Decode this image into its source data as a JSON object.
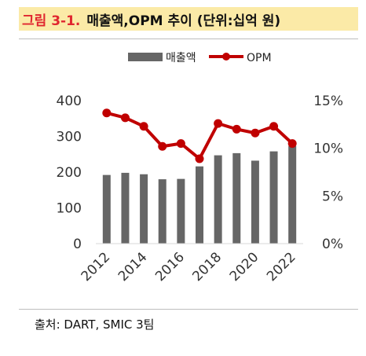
{
  "header": {
    "figure_number": "그림 3-1.",
    "title": "매출액,OPM 추이 (단위:십억 원)"
  },
  "source": "출처: DART, SMIC 3팀",
  "colors": {
    "bar": "#666666",
    "line": "#c00000",
    "title_bg": "#fbeaa7",
    "title_number": "#e0262f"
  },
  "chart_data": {
    "type": "bar",
    "x": [
      2012,
      2013,
      2014,
      2015,
      2016,
      2017,
      2018,
      2019,
      2020,
      2021,
      2022
    ],
    "x_tick_labels": [
      "2012",
      "2014",
      "2016",
      "2018",
      "2020",
      "2022"
    ],
    "series": [
      {
        "name": "매출액",
        "type": "bar",
        "axis": "left",
        "values": [
          192,
          198,
          194,
          180,
          181,
          216,
          247,
          253,
          232,
          258,
          273
        ]
      },
      {
        "name": "OPM",
        "type": "line",
        "axis": "right",
        "values": [
          13.7,
          13.2,
          12.3,
          10.2,
          10.5,
          8.9,
          12.6,
          12.0,
          11.6,
          12.3,
          10.5
        ]
      }
    ],
    "y_left": {
      "min": 0,
      "max": 400,
      "ticks": [
        0,
        100,
        200,
        300,
        400
      ],
      "tick_labels": [
        "0",
        "100",
        "200",
        "300",
        "400"
      ]
    },
    "y_right": {
      "min": 0,
      "max": 15,
      "ticks": [
        0,
        5,
        10,
        15
      ],
      "tick_labels": [
        "0%",
        "5%",
        "10%",
        "15%"
      ]
    },
    "legend_position": "top-center",
    "grid": false
  }
}
